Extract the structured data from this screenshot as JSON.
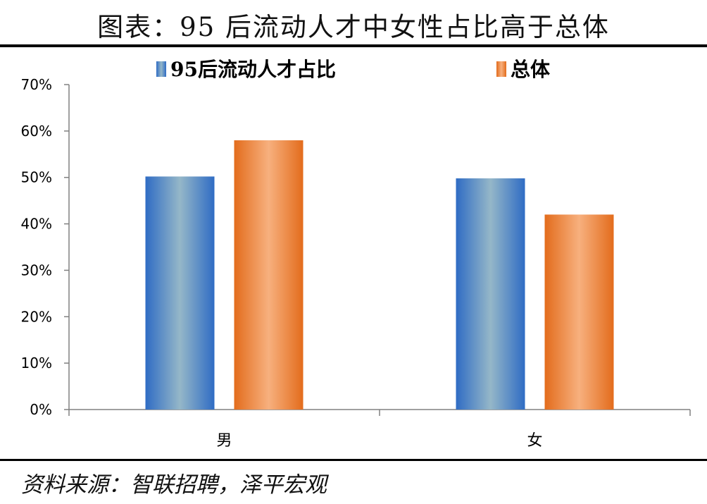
{
  "title": "图表：95 后流动人才中女性占比高于总体",
  "source": "资料来源：智联招聘，泽平宏观",
  "chart_data": {
    "type": "bar",
    "categories": [
      "男",
      "女"
    ],
    "series": [
      {
        "name": "95后流动人才占比",
        "values": [
          50.2,
          49.8
        ],
        "color": "#3a73c6"
      },
      {
        "name": "总体",
        "values": [
          58.0,
          42.0
        ],
        "color": "#e8772e"
      }
    ],
    "ylim": [
      0,
      70
    ],
    "yticks": [
      "0%",
      "10%",
      "20%",
      "30%",
      "40%",
      "50%",
      "60%",
      "70%"
    ],
    "legend_position": "top",
    "grid": false
  }
}
